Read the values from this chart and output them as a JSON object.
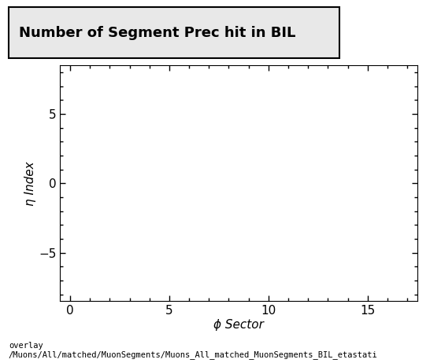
{
  "title": "Number of Segment Prec hit in BIL",
  "xlabel": "ϕ Sector",
  "ylabel": "η Index",
  "xlim": [
    -0.5,
    17.5
  ],
  "ylim": [
    -8.5,
    8.5
  ],
  "xticks": [
    0,
    5,
    10,
    15
  ],
  "yticks": [
    -5,
    0,
    5
  ],
  "background_color": "#ffffff",
  "plot_bg_color": "#ffffff",
  "title_fontsize": 13,
  "label_fontsize": 11,
  "tick_fontsize": 11,
  "footer_text": "overlay\n/Muons/All/matched/MuonSegments/Muons_All_matched_MuonSegments_BIL_etastati",
  "footer_fontsize": 7.5
}
